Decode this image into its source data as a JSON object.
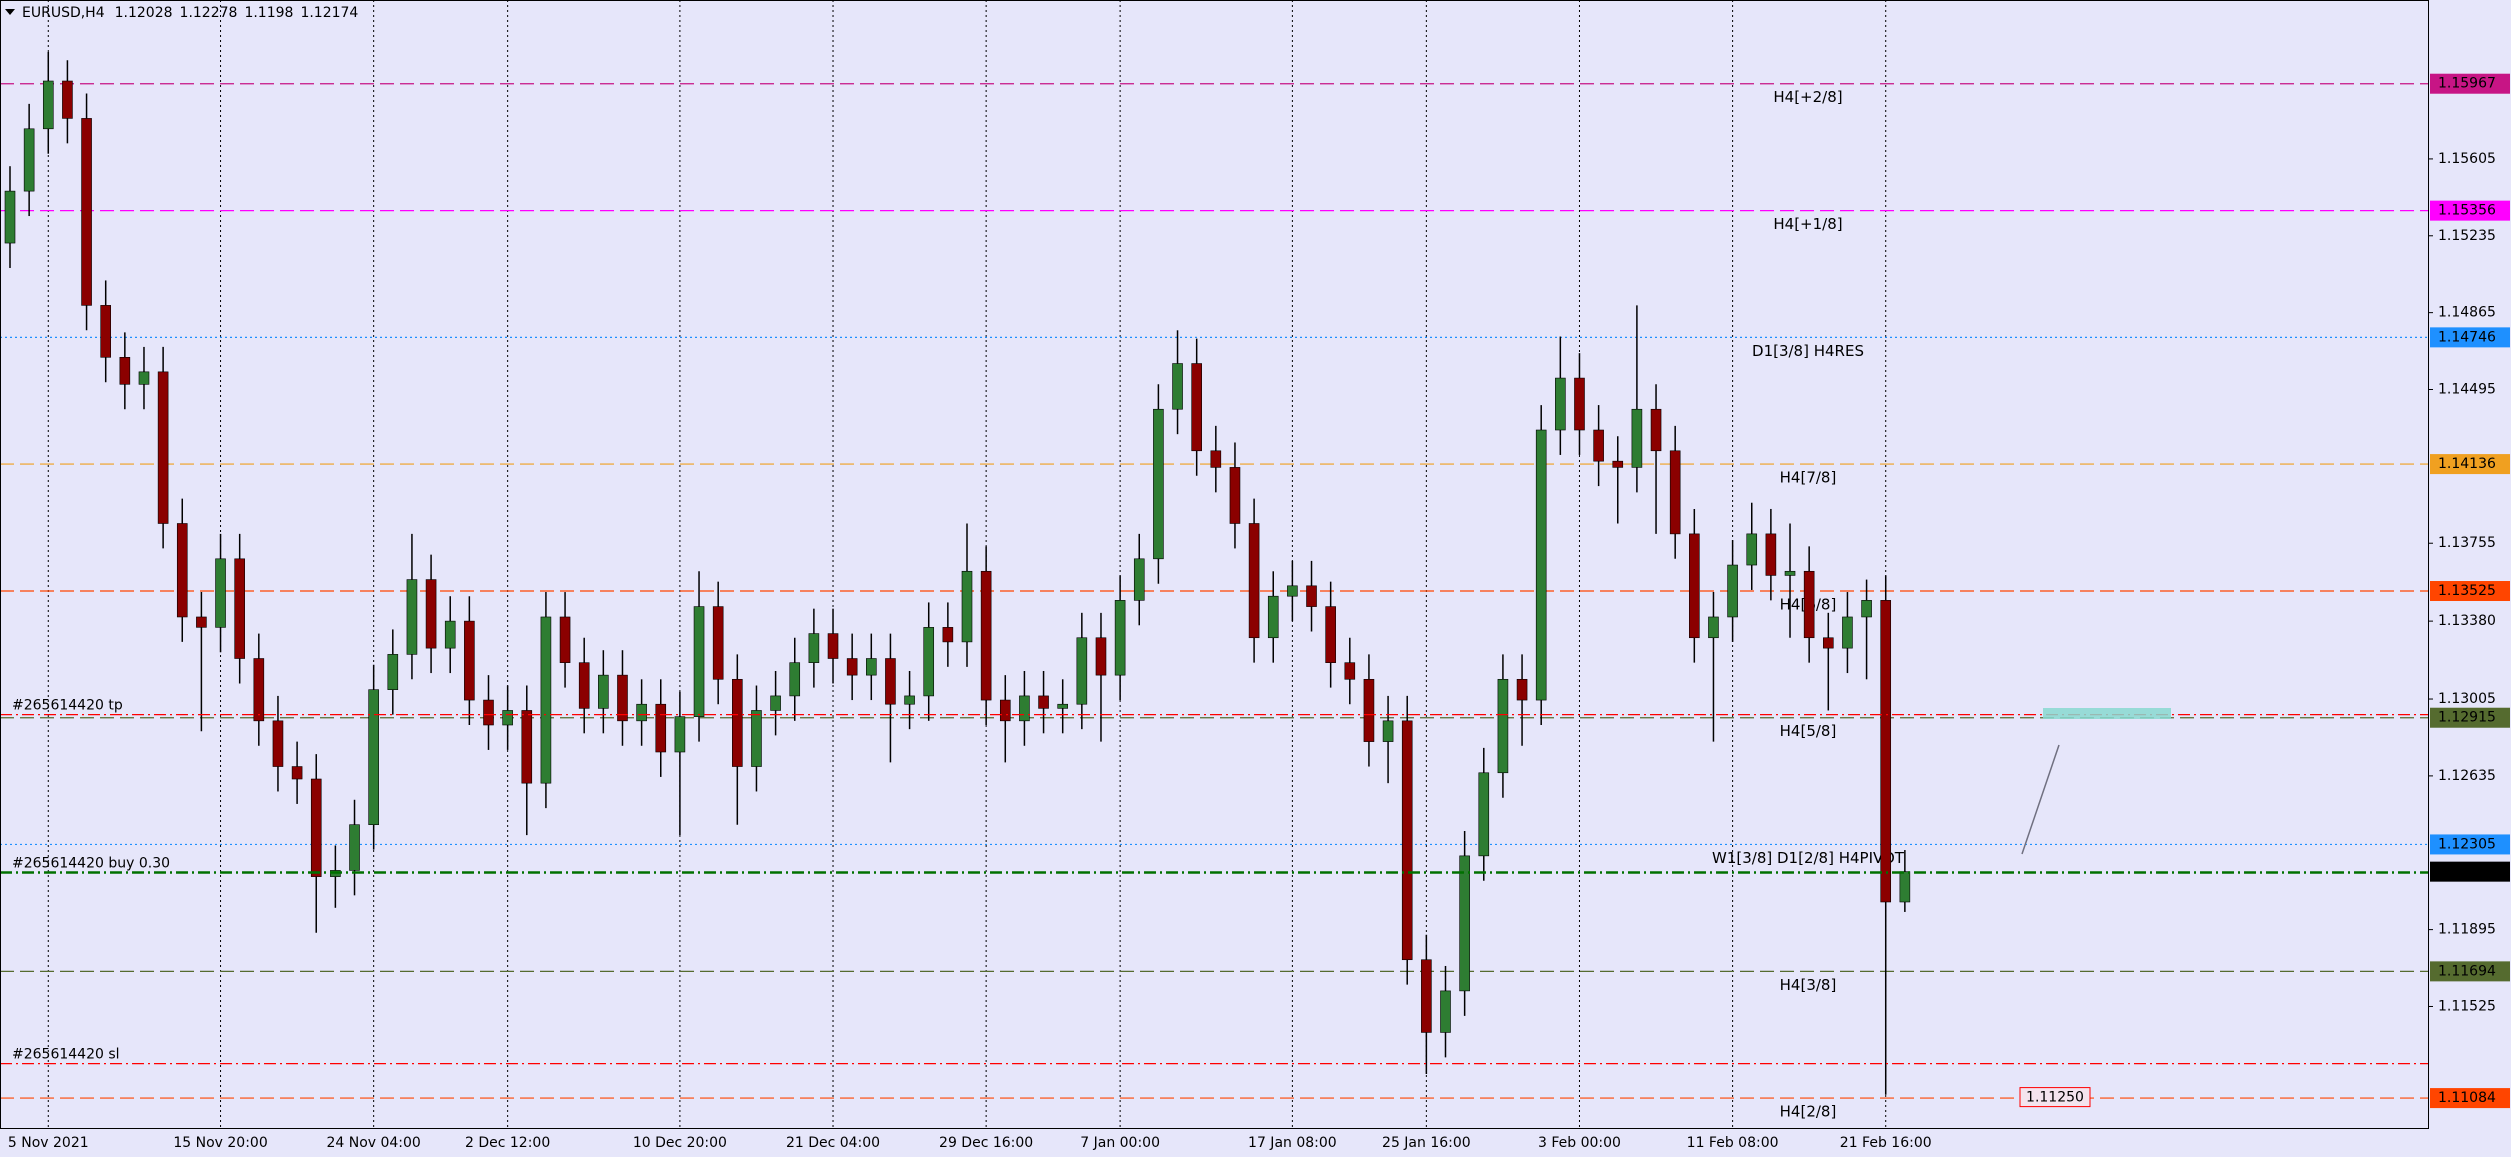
{
  "chart_data": {
    "type": "candlestick",
    "symbol": "EURUSD,H4",
    "categories": [
      null,
      null,
      "5 Nov 2021",
      null,
      null,
      null,
      null,
      null,
      null,
      null,
      null,
      "15 Nov 20:00",
      null,
      null,
      null,
      null,
      null,
      null,
      null,
      "24 Nov 04:00",
      null,
      null,
      null,
      null,
      null,
      null,
      "2 Dec 12:00",
      null,
      null,
      null,
      null,
      null,
      null,
      null,
      null,
      "10 Dec 20:00",
      null,
      null,
      null,
      null,
      null,
      null,
      null,
      "21 Dec 04:00",
      null,
      null,
      null,
      null,
      null,
      null,
      null,
      "29 Dec 16:00",
      null,
      null,
      null,
      null,
      null,
      null,
      "7 Jan 00:00",
      null,
      null,
      null,
      null,
      null,
      null,
      null,
      null,
      "17 Jan 08:00",
      null,
      null,
      null,
      null,
      null,
      null,
      "25 Jan 16:00",
      null,
      null,
      null,
      null,
      null,
      null,
      null,
      "3 Feb 00:00",
      null,
      null,
      null,
      null,
      null,
      null,
      null,
      "11 Feb 08:00",
      null,
      null,
      null,
      null,
      null,
      null,
      null,
      "21 Feb 16:00",
      null
    ],
    "open": [
      1.152,
      1.1545,
      1.1575,
      1.1598,
      1.158,
      1.149,
      1.1465,
      1.1452,
      1.1458,
      1.1385,
      1.134,
      1.1335,
      1.1368,
      1.132,
      1.129,
      1.1268,
      1.1262,
      1.1215,
      1.1218,
      1.124,
      1.1305,
      1.1322,
      1.1358,
      1.1325,
      1.1338,
      1.13,
      1.1288,
      1.1295,
      1.126,
      1.134,
      1.1318,
      1.1296,
      1.1312,
      1.129,
      1.1298,
      1.1275,
      1.1292,
      1.1345,
      1.131,
      1.1268,
      1.1295,
      1.1302,
      1.1318,
      1.1332,
      1.132,
      1.1312,
      1.132,
      1.1298,
      1.1302,
      1.1335,
      1.1328,
      1.1362,
      1.13,
      1.129,
      1.1302,
      1.1296,
      1.1298,
      1.133,
      1.1312,
      1.1348,
      1.1368,
      1.144,
      1.1462,
      1.142,
      1.1412,
      1.1385,
      1.133,
      1.135,
      1.1355,
      1.1345,
      1.1318,
      1.131,
      1.128,
      1.129,
      1.1175,
      1.114,
      1.116,
      1.1225,
      1.1265,
      1.131,
      1.13,
      1.143,
      1.1455,
      1.143,
      1.1415,
      1.1412,
      1.144,
      1.142,
      1.138,
      1.133,
      1.134,
      1.1365,
      1.138,
      1.136,
      1.1362,
      1.133,
      1.1325,
      1.134,
      1.1348,
      1.12028
    ],
    "high": [
      1.1557,
      1.1587,
      1.1612,
      1.1608,
      1.1592,
      1.1502,
      1.1477,
      1.147,
      1.147,
      1.1397,
      1.1352,
      1.138,
      1.138,
      1.1332,
      1.1302,
      1.128,
      1.1274,
      1.123,
      1.1252,
      1.1317,
      1.1334,
      1.138,
      1.137,
      1.135,
      1.135,
      1.1312,
      1.1307,
      1.1307,
      1.1352,
      1.1352,
      1.133,
      1.1324,
      1.1324,
      1.131,
      1.131,
      1.1304,
      1.1362,
      1.1357,
      1.1322,
      1.1307,
      1.1314,
      1.133,
      1.1344,
      1.1344,
      1.1332,
      1.1332,
      1.1332,
      1.1314,
      1.1347,
      1.1347,
      1.1385,
      1.1374,
      1.1312,
      1.1314,
      1.1314,
      1.131,
      1.1342,
      1.1342,
      1.136,
      1.138,
      1.1452,
      1.1478,
      1.1474,
      1.1432,
      1.1424,
      1.1397,
      1.1362,
      1.1367,
      1.1367,
      1.1357,
      1.133,
      1.1322,
      1.1302,
      1.1302,
      1.1187,
      1.1172,
      1.1237,
      1.1277,
      1.1322,
      1.1322,
      1.1442,
      1.1475,
      1.1467,
      1.1442,
      1.1427,
      1.149,
      1.1452,
      1.1432,
      1.1392,
      1.1352,
      1.1377,
      1.1395,
      1.1392,
      1.1385,
      1.1374,
      1.1342,
      1.1352,
      1.1358,
      1.136,
      1.12278
    ],
    "low": [
      1.1508,
      1.1533,
      1.1563,
      1.1568,
      1.1478,
      1.1453,
      1.144,
      1.144,
      1.1373,
      1.1328,
      1.1285,
      1.1323,
      1.1308,
      1.1278,
      1.1256,
      1.125,
      1.1188,
      1.12,
      1.1206,
      1.1228,
      1.1293,
      1.131,
      1.1313,
      1.1313,
      1.1288,
      1.1276,
      1.1276,
      1.1235,
      1.1248,
      1.1306,
      1.1284,
      1.1284,
      1.1278,
      1.1278,
      1.1263,
      1.1235,
      1.128,
      1.1298,
      1.124,
      1.1256,
      1.1283,
      1.129,
      1.1306,
      1.1308,
      1.13,
      1.13,
      1.127,
      1.1286,
      1.129,
      1.1316,
      1.1316,
      1.1288,
      1.127,
      1.1278,
      1.1284,
      1.1284,
      1.1286,
      1.128,
      1.13,
      1.1336,
      1.1356,
      1.1428,
      1.1408,
      1.14,
      1.1373,
      1.1318,
      1.1318,
      1.1338,
      1.1333,
      1.1306,
      1.1298,
      1.1268,
      1.126,
      1.1163,
      1.112,
      1.1128,
      1.1148,
      1.1213,
      1.1253,
      1.1278,
      1.1288,
      1.1418,
      1.1418,
      1.1403,
      1.1385,
      1.14,
      1.138,
      1.1368,
      1.1318,
      1.128,
      1.1328,
      1.1353,
      1.1348,
      1.133,
      1.1318,
      1.1295,
      1.1313,
      1.131,
      1.111,
      1.1198
    ],
    "close": [
      1.1545,
      1.1575,
      1.1598,
      1.158,
      1.149,
      1.1465,
      1.1452,
      1.1458,
      1.1385,
      1.134,
      1.1335,
      1.1368,
      1.132,
      1.129,
      1.1268,
      1.1262,
      1.1215,
      1.1218,
      1.124,
      1.1305,
      1.1322,
      1.1358,
      1.1325,
      1.1338,
      1.13,
      1.1288,
      1.1295,
      1.126,
      1.134,
      1.1318,
      1.1296,
      1.1312,
      1.129,
      1.1298,
      1.1275,
      1.1292,
      1.1345,
      1.131,
      1.1268,
      1.1295,
      1.1302,
      1.1318,
      1.1332,
      1.132,
      1.1312,
      1.132,
      1.1298,
      1.1302,
      1.1335,
      1.1328,
      1.1362,
      1.13,
      1.129,
      1.1302,
      1.1296,
      1.1298,
      1.133,
      1.1312,
      1.1348,
      1.1368,
      1.144,
      1.1462,
      1.142,
      1.1412,
      1.1385,
      1.133,
      1.135,
      1.1355,
      1.1345,
      1.1318,
      1.131,
      1.128,
      1.129,
      1.1175,
      1.114,
      1.116,
      1.1225,
      1.1265,
      1.131,
      1.13,
      1.143,
      1.1455,
      1.143,
      1.1415,
      1.1412,
      1.144,
      1.142,
      1.138,
      1.133,
      1.134,
      1.1365,
      1.138,
      1.136,
      1.1362,
      1.133,
      1.1325,
      1.134,
      1.1348,
      1.12028,
      1.12174
    ],
    "up_color": "#2e7d32",
    "down_color": "#8b0000",
    "wick_color": "#000000",
    "ylim": [
      1.1094,
      1.1637
    ],
    "yticks": [
      1.15605,
      1.15235,
      1.14865,
      1.14495,
      1.13755,
      {
        "value": 1.1338,
        "label": "1.13380"
      },
      1.13005,
      1.12635,
      1.11895,
      1.11525
    ],
    "grid": true,
    "levels": [
      {
        "name": "H4[+2/8]",
        "price": 1.15967,
        "color": "#c71585",
        "style": "dash"
      },
      {
        "name": "H4[+1/8]",
        "price": 1.15356,
        "color": "#ff00ff",
        "style": "dash"
      },
      {
        "name": "D1[3/8] H4RES",
        "price": 1.14746,
        "color": "#1e90ff",
        "style": "dot"
      },
      {
        "name": "H4[7/8]",
        "price": 1.14136,
        "color": "#f0a020",
        "style": "dash"
      },
      {
        "name": "H4[6/8]",
        "price": 1.13525,
        "color": "#ff4500",
        "style": "dash"
      },
      {
        "name": "H4[5/8]",
        "price": 1.12915,
        "color": "#556b2f",
        "style": "dash"
      },
      {
        "name": "W1[3/8] D1[2/8] H4PIVOT",
        "price": 1.12305,
        "color": "#1e90ff",
        "style": "dot"
      },
      {
        "name": "H4[3/8]",
        "price": 1.11694,
        "color": "#556b2f",
        "style": "dash"
      },
      {
        "name": "H4[2/8]",
        "price": 1.11084,
        "color": "#ff4500",
        "style": "dash"
      }
    ],
    "orders": [
      {
        "label": "#265614420 tp",
        "price": 1.1293,
        "color": "#ff0000"
      },
      {
        "label": "#265614420 buy 0.30",
        "price": 1.1217,
        "color": "#007000"
      },
      {
        "label": "#265614420 sl",
        "price": 1.1125,
        "price_label": "1.11250",
        "color": "#ff0000"
      }
    ]
  }
}
